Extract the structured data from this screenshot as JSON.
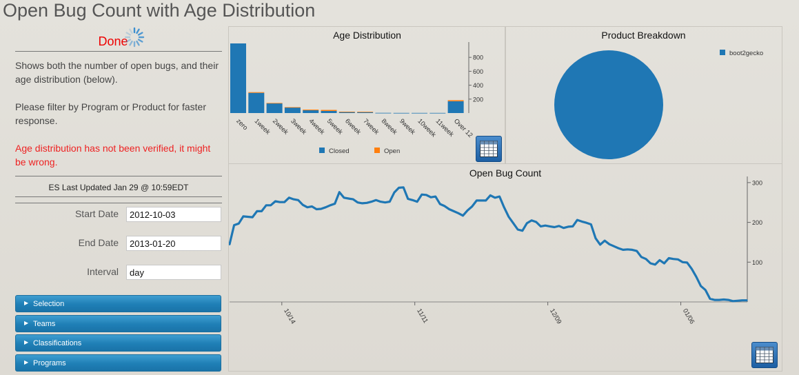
{
  "page_title": "Open Bug Count with Age Distribution",
  "sidebar": {
    "status": "Done",
    "description_1": "Shows both the number of open bugs, and their age distribution (below).",
    "description_2": "Please filter by Program or Product for faster response.",
    "warning": "Age distribution has not been verified, it might be wrong.",
    "es_updated": "ES Last Updated Jan 29 @ 10:59EDT",
    "fields": {
      "start_label": "Start Date",
      "start_value": "2012-10-03",
      "end_label": "End Date",
      "end_value": "2013-01-20",
      "interval_label": "Interval",
      "interval_value": "day"
    },
    "accordions": [
      "Selection",
      "Teams",
      "Classifications",
      "Programs"
    ]
  },
  "colors": {
    "closed": "#1f77b4",
    "open": "#ff7f0e",
    "accent": "#1f7fb6",
    "status": "#e00000"
  },
  "icons": [
    "spinner-icon",
    "table-icon",
    "chevron-right-icon"
  ],
  "chart_data": [
    {
      "type": "bar",
      "title": "Age Distribution",
      "categories": [
        "zero",
        "1week",
        "2week",
        "3week",
        "4week",
        "5week",
        "6week",
        "7week",
        "8week",
        "9week",
        "10week",
        "11week",
        "Over 12"
      ],
      "series": [
        {
          "name": "Closed",
          "values": [
            1000,
            290,
            140,
            80,
            40,
            30,
            15,
            12,
            3,
            2,
            2,
            2,
            170
          ]
        },
        {
          "name": "Open",
          "values": [
            0,
            10,
            5,
            5,
            10,
            15,
            5,
            8,
            0,
            0,
            0,
            0,
            15
          ]
        }
      ],
      "ylim": [
        0,
        1000
      ],
      "yticks": [
        200,
        400,
        600,
        800
      ],
      "stacked": true,
      "legend": "bottom"
    },
    {
      "type": "pie",
      "title": "Product Breakdown",
      "categories": [
        "boot2gecko"
      ],
      "values": [
        100
      ],
      "legend": "top-right"
    },
    {
      "type": "line",
      "title": "Open Bug Count",
      "x_start": "2012-10-03",
      "x_end": "2013-01-20",
      "xticks": [
        "10/14",
        "11/11",
        "12/09",
        "01/06"
      ],
      "yticks": [
        100,
        200,
        300
      ],
      "ylim": [
        0,
        305
      ],
      "values": [
        145,
        193,
        197,
        215,
        214,
        213,
        228,
        228,
        243,
        243,
        253,
        251,
        251,
        262,
        258,
        256,
        244,
        238,
        240,
        233,
        234,
        238,
        243,
        247,
        276,
        262,
        260,
        258,
        250,
        248,
        249,
        252,
        256,
        252,
        250,
        252,
        275,
        287,
        288,
        259,
        256,
        252,
        270,
        269,
        263,
        265,
        246,
        241,
        233,
        228,
        223,
        217,
        230,
        240,
        255,
        255,
        255,
        268,
        262,
        265,
        238,
        214,
        198,
        182,
        179,
        198,
        205,
        201,
        190,
        192,
        190,
        188,
        191,
        186,
        189,
        190,
        206,
        202,
        199,
        195,
        160,
        144,
        154,
        145,
        140,
        135,
        131,
        132,
        131,
        128,
        113,
        108,
        97,
        94,
        105,
        97,
        110,
        108,
        107,
        100,
        99,
        83,
        63,
        40,
        30,
        8,
        5,
        5,
        6,
        5,
        2,
        3,
        4,
        4
      ]
    }
  ]
}
